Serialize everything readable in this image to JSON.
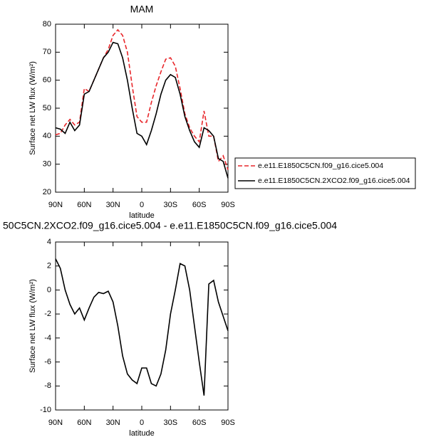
{
  "chart_data": [
    {
      "type": "line",
      "title": "MAM",
      "xlabel": "latitude",
      "ylabel": "Surface net LW flux (W/m²)",
      "x": [
        90,
        85,
        80,
        75,
        70,
        65,
        60,
        55,
        50,
        45,
        40,
        35,
        30,
        25,
        20,
        15,
        10,
        5,
        0,
        -5,
        -10,
        -15,
        -20,
        -25,
        -30,
        -35,
        -40,
        -45,
        -50,
        -55,
        -60,
        -65,
        -70,
        -75,
        -80,
        -85,
        -90
      ],
      "series": [
        {
          "name": "e.e11.E1850C5CN.f09_g16.cice5.004",
          "color": "#e8262a",
          "linestyle": "dashed",
          "values": [
            40.5,
            41,
            44,
            46,
            44,
            45,
            57,
            56,
            60,
            64,
            68,
            71,
            76,
            78,
            76,
            70,
            58,
            47,
            45,
            45,
            52,
            58,
            63,
            67.5,
            68,
            65,
            57,
            48,
            43,
            40,
            38,
            49,
            40,
            40,
            31,
            33,
            28
          ]
        },
        {
          "name": "e.e11.E1850C5CN.2XCO2.f09_g16.cice5.004",
          "color": "#000000",
          "linestyle": "solid",
          "values": [
            43,
            42.5,
            41,
            45,
            42,
            44,
            55,
            56,
            60,
            64,
            68,
            70,
            73.5,
            73,
            68,
            60,
            50,
            41,
            40,
            37,
            42,
            48,
            55,
            60,
            62,
            61,
            55,
            47,
            42,
            38,
            36,
            43,
            42,
            40,
            32,
            31,
            25
          ]
        }
      ],
      "xlim": [
        90,
        -90
      ],
      "ylim": [
        20,
        80
      ],
      "xticks": [
        {
          "value": 90,
          "label": "90N"
        },
        {
          "value": 60,
          "label": "60N"
        },
        {
          "value": 30,
          "label": "30N"
        },
        0,
        {
          "value": -30,
          "label": "30S"
        },
        {
          "value": -60,
          "label": "60S"
        },
        {
          "value": -90,
          "label": "90S"
        }
      ],
      "yticks": [
        20,
        30,
        40,
        50,
        60,
        70,
        80
      ],
      "legend": "right"
    },
    {
      "type": "line",
      "title": "50C5CN.2XCO2.f09_g16.cice5.004 - e.e11.E1850C5CN.f09_g16.cice5.004",
      "xlabel": "latitude",
      "ylabel": "Surface net LW flux (W/m²)",
      "x": [
        90,
        85,
        80,
        75,
        70,
        65,
        60,
        55,
        50,
        45,
        40,
        35,
        30,
        25,
        20,
        15,
        10,
        5,
        0,
        -5,
        -10,
        -15,
        -20,
        -25,
        -30,
        -35,
        -40,
        -45,
        -50,
        -55,
        -60,
        -65,
        -70,
        -75,
        -80,
        -85,
        -90
      ],
      "series": [
        {
          "color": "#000000",
          "linestyle": "solid",
          "values": [
            2.6,
            1.8,
            0,
            -1.2,
            -2,
            -1.5,
            -2.5,
            -1.5,
            -0.6,
            -0.2,
            -0.3,
            -0.1,
            -1,
            -3,
            -5.5,
            -7,
            -7.5,
            -7.8,
            -6.5,
            -6.5,
            -7.8,
            -8,
            -7,
            -5,
            -2,
            0,
            2.2,
            2,
            0,
            -3,
            -6,
            -8.8,
            0.5,
            0.8,
            -1,
            -2.2,
            -3.4
          ]
        }
      ],
      "xlim": [
        90,
        -90
      ],
      "ylim": [
        -10,
        4
      ],
      "xticks": [
        {
          "value": 90,
          "label": "90N"
        },
        {
          "value": 60,
          "label": "60N"
        },
        {
          "value": 30,
          "label": "30N"
        },
        0,
        {
          "value": -30,
          "label": "30S"
        },
        {
          "value": -60,
          "label": "60S"
        },
        {
          "value": -90,
          "label": "90S"
        }
      ],
      "yticks": [
        -10,
        -8,
        -6,
        -4,
        -2,
        0,
        2,
        4
      ]
    }
  ]
}
